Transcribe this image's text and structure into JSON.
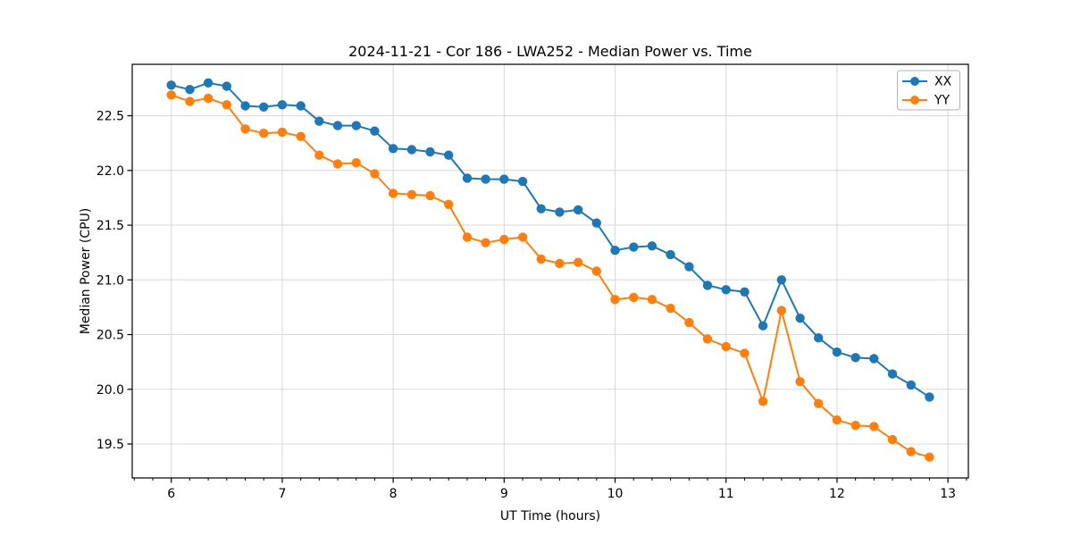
{
  "chart_data": {
    "type": "line",
    "title": "2024-11-21 - Cor 186 - LWA252 - Median Power vs. Time",
    "xlabel": "UT Time (hours)",
    "ylabel": "Median Power (CPU)",
    "xlim": [
      5.648,
      13.184
    ],
    "ylim": [
      19.19,
      22.97
    ],
    "x_ticks": [
      6,
      7,
      8,
      9,
      10,
      11,
      12,
      13
    ],
    "x_tick_labels": [
      "6",
      "7",
      "8",
      "9",
      "10",
      "11",
      "12",
      "13"
    ],
    "y_ticks": [
      19.5,
      20.0,
      20.5,
      21.0,
      21.5,
      22.0,
      22.5
    ],
    "y_tick_labels": [
      "19.5",
      "20.0",
      "20.5",
      "21.0",
      "21.5",
      "22.0",
      "22.5"
    ],
    "x_minor_tick_step_hours": 0.16667,
    "grid": true,
    "legend_position": "upper right",
    "x": [
      6.0,
      6.167,
      6.333,
      6.5,
      6.667,
      6.833,
      7.0,
      7.167,
      7.333,
      7.5,
      7.667,
      7.833,
      8.0,
      8.167,
      8.333,
      8.5,
      8.667,
      8.833,
      9.0,
      9.167,
      9.333,
      9.5,
      9.667,
      9.833,
      10.0,
      10.167,
      10.333,
      10.5,
      10.667,
      10.833,
      11.0,
      11.167,
      11.333,
      11.5,
      11.667,
      11.833,
      12.0,
      12.167,
      12.333,
      12.5,
      12.667,
      12.833
    ],
    "series": [
      {
        "name": "XX",
        "color": "#1f77b4",
        "values": [
          22.78,
          22.74,
          22.8,
          22.77,
          22.59,
          22.58,
          22.6,
          22.59,
          22.45,
          22.41,
          22.41,
          22.36,
          22.2,
          22.19,
          22.17,
          22.14,
          21.93,
          21.92,
          21.92,
          21.9,
          21.65,
          21.62,
          21.64,
          21.52,
          21.27,
          21.3,
          21.31,
          21.23,
          21.12,
          20.95,
          20.91,
          20.89,
          20.58,
          21.0,
          20.65,
          20.47,
          20.34,
          20.29,
          20.28,
          20.14,
          20.04,
          19.93
        ]
      },
      {
        "name": "YY",
        "color": "#ff7f0e",
        "values": [
          22.69,
          22.63,
          22.66,
          22.6,
          22.38,
          22.34,
          22.35,
          22.31,
          22.14,
          22.06,
          22.07,
          21.97,
          21.79,
          21.78,
          21.77,
          21.69,
          21.39,
          21.34,
          21.37,
          21.39,
          21.19,
          21.15,
          21.16,
          21.08,
          20.82,
          20.84,
          20.82,
          20.74,
          20.61,
          20.46,
          20.39,
          20.33,
          19.89,
          20.72,
          20.07,
          19.87,
          19.72,
          19.67,
          19.66,
          19.54,
          19.43,
          19.38
        ]
      }
    ]
  },
  "style": {
    "background": "#ffffff",
    "grid_color": "#d8d8d8",
    "spine_color": "#000000",
    "text_color": "#000000",
    "legend_border_color": "#b3b3b3",
    "legend_background": "#ffffff"
  }
}
